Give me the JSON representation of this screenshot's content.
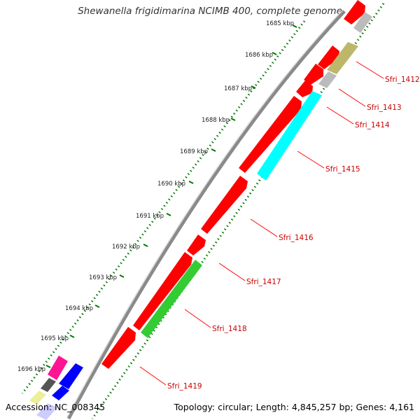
{
  "title": "Shewanella frigidimarina NCIMB 400, complete genome",
  "footer": {
    "accession_label": "Accession:",
    "accession": "NC_008345",
    "topology": "Topology: circular; Length: 4,845,257 bp; Genes: 4,161"
  },
  "ticks": [
    "1685 kbp",
    "1686 kbp",
    "1687 kbp",
    "1688 kbp",
    "1689 kbp",
    "1690 kbp",
    "1691 kbp",
    "1692 kbp",
    "1693 kbp",
    "1694 kbp",
    "1695 kbp",
    "1696 kbp"
  ],
  "genes": [
    "Sfri_1412",
    "Sfri_1413",
    "Sfri_1414",
    "Sfri_1415",
    "Sfri_1416",
    "Sfri_1417",
    "Sfri_1418",
    "Sfri_1419"
  ],
  "colors": {
    "cds": "#ff0000",
    "teal": "#00ffff",
    "green": "#33cc33",
    "olive": "#bdb76b",
    "gray": "#bbbbbb",
    "magenta": "#ff1493",
    "blue": "#0000ff",
    "tick": "#007700",
    "backbone": "#999999"
  }
}
